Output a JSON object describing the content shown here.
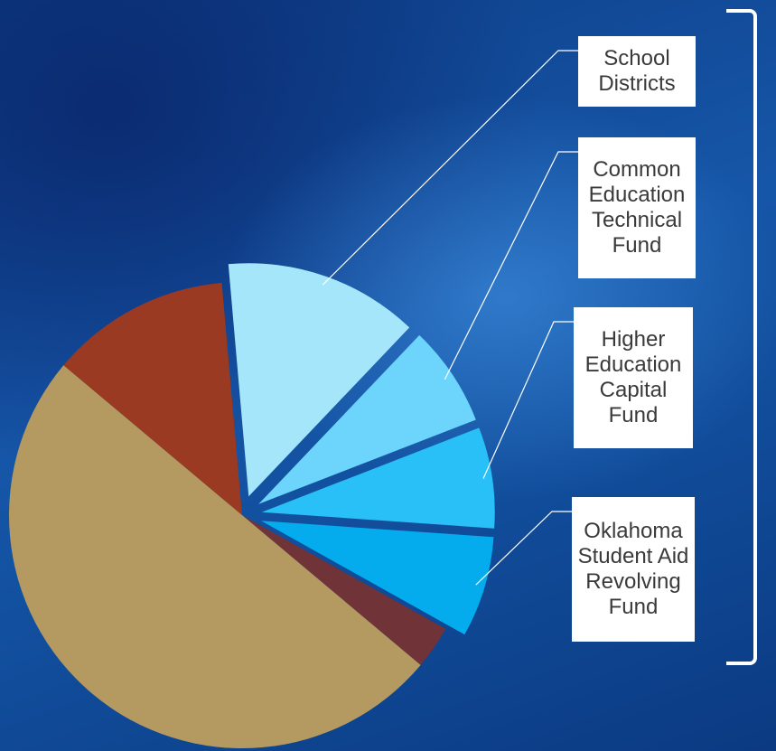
{
  "chart_data": {
    "type": "pie",
    "title": "",
    "slices": [
      {
        "label": "School Districts",
        "value": 13.5,
        "color": "#a6e6fb",
        "exploded": true
      },
      {
        "label": "Common Education Technical Fund",
        "value": 7.0,
        "color": "#6dd5fb",
        "exploded": true
      },
      {
        "label": "Higher Education Capital Fund",
        "value": 7.0,
        "color": "#29bff7",
        "exploded": true
      },
      {
        "label": "Oklahoma Student Aid Revolving Fund",
        "value": 7.0,
        "color": "#04acee",
        "exploded": true
      },
      {
        "label": "",
        "value": 3.0,
        "color": "#6f3338",
        "exploded": false
      },
      {
        "label": "",
        "value": 50.0,
        "color": "#b49a60",
        "exploded": false
      },
      {
        "label": "",
        "value": 12.5,
        "color": "#9a3a22",
        "exploded": false
      }
    ],
    "start_angle_deg": -15,
    "direction": "clockwise"
  },
  "callouts": [
    {
      "slice": 0,
      "lines": [
        "School",
        "Districts"
      ]
    },
    {
      "slice": 1,
      "lines": [
        "Common",
        "Education",
        "Technical",
        "Fund"
      ]
    },
    {
      "slice": 2,
      "lines": [
        "Higher",
        "Education",
        "Capital",
        "Fund"
      ]
    },
    {
      "slice": 3,
      "lines": [
        "Oklahoma",
        "Student Aid",
        "Revolving",
        "Fund"
      ]
    }
  ],
  "colors": {
    "background": "#1656a8",
    "label_box": "#ffffff",
    "label_text": "#3a3a3a",
    "leader_line": "#ffffff",
    "bracket": "#ffffff"
  }
}
